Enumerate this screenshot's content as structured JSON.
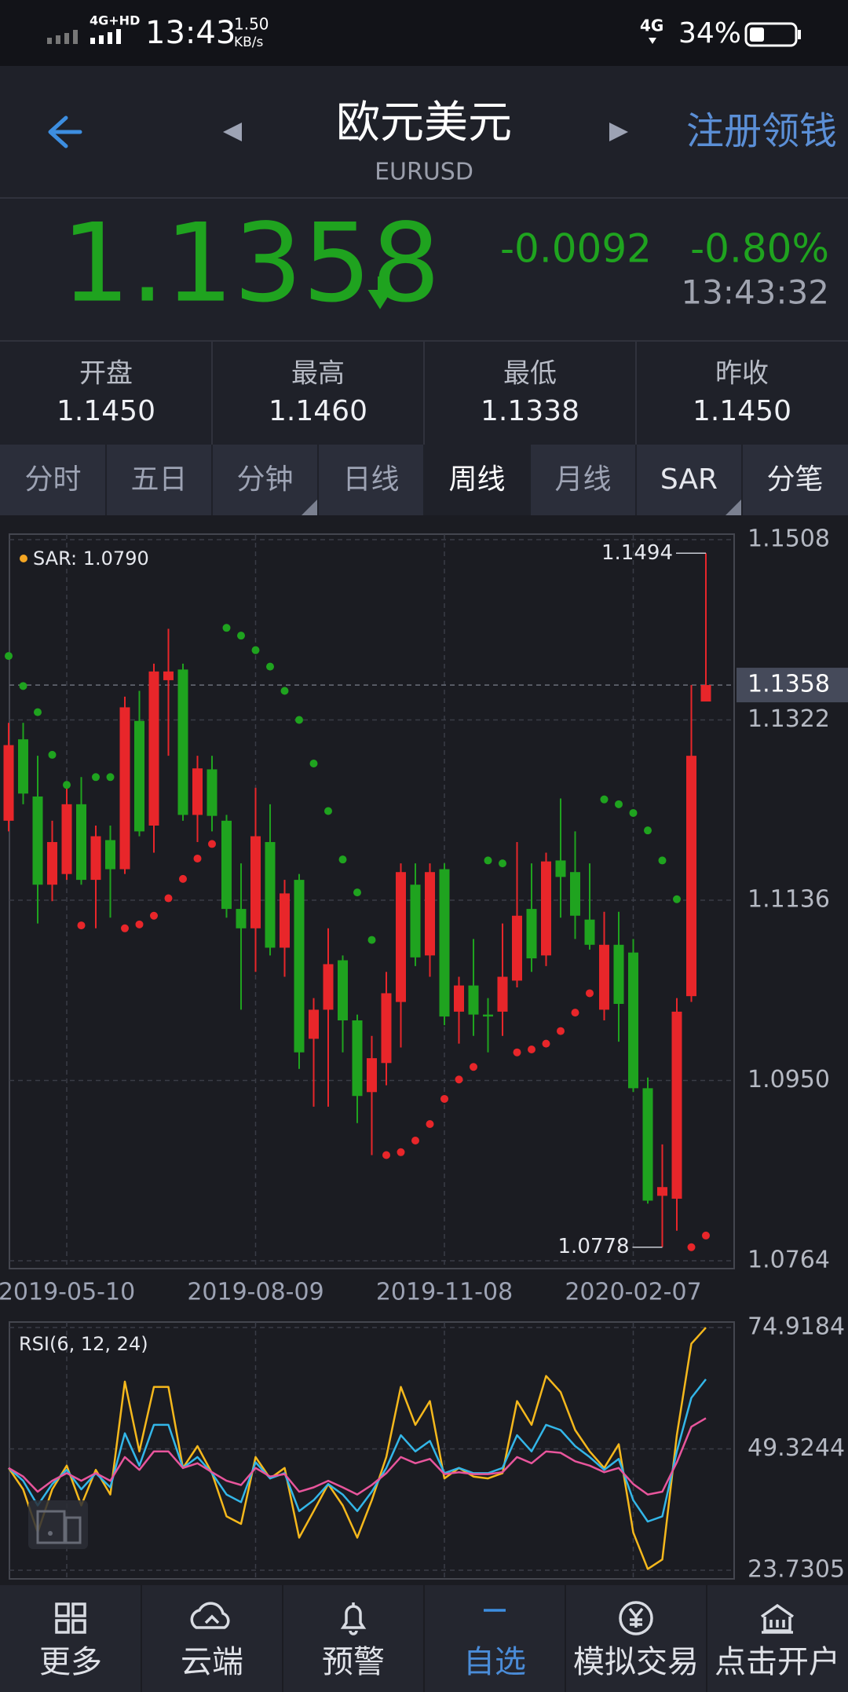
{
  "status_bar": {
    "network": "4G+HD",
    "time": "13:43",
    "speed": "1.50",
    "speed_unit": "KB/s",
    "network2": "4G",
    "battery": "34%"
  },
  "header": {
    "title": "欧元美元",
    "subtitle": "EURUSD",
    "action": "注册领钱"
  },
  "quote": {
    "price": 1.1358,
    "change": "-0.0092",
    "change_pct": "-0.80%",
    "time": "13:43:32"
  },
  "stats": [
    {
      "label": "开盘",
      "value": "1.1450"
    },
    {
      "label": "最高",
      "value": "1.1460"
    },
    {
      "label": "最低",
      "value": "1.1338"
    },
    {
      "label": "昨收",
      "value": "1.1450"
    }
  ],
  "tabs": [
    "分时",
    "五日",
    "分钟",
    "日线",
    "周线",
    "月线",
    "SAR",
    "分笔"
  ],
  "active_tab": 4,
  "chart_data": [
    {
      "type": "candlestick",
      "indicator_label": "SAR: 1.0790",
      "indicator_color": "#f5a623",
      "up_color": "#e8262a",
      "down_color": "#1fa31f",
      "categories": [
        null,
        null,
        null,
        null,
        "2019-05-10",
        null,
        null,
        null,
        null,
        null,
        null,
        null,
        null,
        null,
        null,
        null,
        null,
        "2019-08-09",
        null,
        null,
        null,
        null,
        null,
        null,
        null,
        null,
        null,
        null,
        null,
        null,
        "2019-11-08",
        null,
        null,
        null,
        null,
        null,
        null,
        null,
        null,
        null,
        null,
        null,
        null,
        "2020-02-07",
        null,
        null,
        null,
        null,
        null
      ],
      "open": [
        1.1218,
        1.1302,
        1.1243,
        1.1152,
        1.1163,
        1.1235,
        1.1157,
        1.1198,
        1.1168,
        1.1321,
        1.1213,
        1.1363,
        1.1374,
        1.1224,
        1.1271,
        1.1218,
        1.1127,
        1.1107,
        1.1196,
        1.1087,
        1.1157,
        1.0993,
        1.1023,
        1.1074,
        1.1012,
        1.0938,
        1.0968,
        1.1031,
        1.1152,
        1.1079,
        1.1168,
        1.1021,
        1.1048,
        1.1018,
        1.1021,
        1.1053,
        1.1127,
        1.1079,
        1.1177,
        1.1165,
        1.1116,
        1.1023,
        1.109,
        1.1082,
        1.0942,
        1.0831,
        1.0828,
        1.1037,
        1.1341
      ],
      "high": [
        1.1319,
        1.1319,
        1.1285,
        1.1218,
        1.1252,
        1.1263,
        1.1213,
        1.1213,
        1.1346,
        1.1352,
        1.138,
        1.1416,
        1.138,
        1.1285,
        1.1285,
        1.1224,
        1.1174,
        1.1252,
        1.1235,
        1.1157,
        1.1163,
        1.1035,
        1.1107,
        1.1079,
        1.1018,
        1.0996,
        1.1062,
        1.1174,
        1.1174,
        1.1174,
        1.1174,
        1.1057,
        1.1096,
        1.1035,
        1.1112,
        1.1196,
        1.1174,
        1.1185,
        1.1241,
        1.1207,
        1.1174,
        1.1124,
        1.1124,
        1.1096,
        1.0953,
        1.0884,
        1.1035,
        1.1358,
        1.1494
      ],
      "low": [
        1.1207,
        1.1235,
        1.1112,
        1.1135,
        1.1157,
        1.1152,
        1.1107,
        1.1118,
        1.1163,
        1.1202,
        1.1185,
        1.1285,
        1.1218,
        1.1196,
        1.1207,
        1.1118,
        1.1023,
        1.1062,
        1.1079,
        1.1057,
        1.0962,
        1.0923,
        1.0923,
        1.0979,
        1.0906,
        1.0873,
        1.0945,
        1.0984,
        1.1068,
        1.1057,
        1.1007,
        1.0988,
        1.0996,
        1.0979,
        1.0996,
        1.1046,
        1.1062,
        1.1068,
        1.1118,
        1.1096,
        1.1085,
        1.1012,
        1.099,
        1.0938,
        1.0823,
        1.0778,
        1.0795,
        1.1031,
        1.1341
      ],
      "close": [
        1.1296,
        1.1246,
        1.1152,
        1.1196,
        1.1235,
        1.1157,
        1.1202,
        1.1168,
        1.1335,
        1.1207,
        1.1372,
        1.1372,
        1.1224,
        1.1272,
        1.1223,
        1.1127,
        1.1107,
        1.1202,
        1.1087,
        1.1143,
        1.0979,
        1.1023,
        1.107,
        1.1012,
        1.0934,
        1.0973,
        1.104,
        1.1165,
        1.1077,
        1.1165,
        1.1016,
        1.1048,
        1.1018,
        1.1016,
        1.1057,
        1.112,
        1.1076,
        1.1176,
        1.116,
        1.112,
        1.109,
        1.109,
        1.1029,
        1.0942,
        1.0826,
        1.084,
        1.1021,
        1.1285,
        1.1358
      ],
      "sar": [
        1.1388,
        1.1357,
        1.133,
        1.1286,
        1.1255,
        1.111,
        1.1263,
        1.1263,
        1.1107,
        1.1111,
        1.112,
        1.1138,
        1.1158,
        1.1179,
        1.1194,
        1.1417,
        1.1409,
        1.1394,
        1.1377,
        1.1352,
        1.1322,
        1.1277,
        1.1228,
        1.1178,
        1.1144,
        1.1095,
        1.0873,
        1.0876,
        1.0888,
        1.0905,
        1.0931,
        1.0951,
        1.0964,
        1.1177,
        1.1174,
        1.0979,
        1.0982,
        1.0988,
        1.1001,
        1.102,
        1.104,
        1.124,
        1.1235,
        1.1226,
        1.1208,
        1.1177,
        1.1137,
        1.0778,
        1.079
      ],
      "annotations": [
        1.1494,
        1.0778
      ],
      "ylim": [
        1.0764,
        1.1508
      ],
      "yticks": [
        1.0764,
        {
          "value": 1.095,
          "label": "1.0950"
        },
        1.1136,
        1.1322,
        1.1508
      ],
      "grid": true
    },
    {
      "type": "line",
      "label": "RSI(6, 12, 24)",
      "series": [
        {
          "color": "#f5b81c",
          "values": [
            45.3,
            40.8,
            31.7,
            40.8,
            45.8,
            37.4,
            44.9,
            39.7,
            63.5,
            48.8,
            62.4,
            62.4,
            45.3,
            49.9,
            44.2,
            35.1,
            33.5,
            47.6,
            43.1,
            45.3,
            30.6,
            36.2,
            41.9,
            37.4,
            30.6,
            38.5,
            47.6,
            62.4,
            54.4,
            59.4,
            43.1,
            45.3,
            43.5,
            43.1,
            44.2,
            59.4,
            54.4,
            64.7,
            61.3,
            53.3,
            48.8,
            45.3,
            50.3,
            31.7,
            24.0,
            26.0,
            52.2,
            71.5,
            74.9
          ]
        },
        {
          "color": "#33b6e8",
          "values": [
            45.3,
            42.6,
            37.4,
            41.9,
            44.9,
            40.8,
            44.2,
            41.2,
            52.6,
            45.8,
            54.4,
            54.4,
            45.3,
            47.6,
            44.2,
            39.7,
            38.1,
            46.5,
            43.1,
            44.2,
            36.2,
            38.5,
            41.9,
            39.7,
            36.2,
            40.3,
            45.3,
            52.2,
            48.8,
            51.0,
            44.2,
            45.3,
            44.2,
            44.2,
            45.3,
            52.2,
            48.8,
            54.4,
            53.3,
            49.9,
            47.6,
            44.9,
            47.2,
            38.5,
            34.0,
            35.1,
            48.8,
            60.1,
            64.0
          ]
        },
        {
          "color": "#e8559c",
          "values": [
            45.3,
            43.5,
            40.3,
            42.6,
            44.2,
            42.6,
            44.2,
            42.6,
            47.6,
            44.9,
            48.8,
            48.8,
            45.3,
            46.3,
            44.4,
            42.6,
            41.7,
            45.3,
            43.5,
            44.0,
            40.3,
            41.2,
            42.6,
            41.2,
            39.7,
            41.7,
            44.2,
            47.6,
            46.3,
            47.2,
            44.0,
            44.4,
            44.0,
            44.0,
            44.4,
            47.6,
            46.3,
            48.8,
            48.5,
            46.7,
            45.8,
            44.4,
            45.3,
            41.9,
            39.7,
            40.3,
            46.5,
            54.0,
            55.8
          ]
        }
      ],
      "ylim": [
        23.7305,
        74.9184
      ],
      "yticks": [
        23.7305,
        49.3244,
        74.9184
      ],
      "grid": true
    }
  ],
  "nav": [
    "更多",
    "云端",
    "预警",
    "自选",
    "模拟交易",
    "点击开户"
  ],
  "active_nav": 3
}
